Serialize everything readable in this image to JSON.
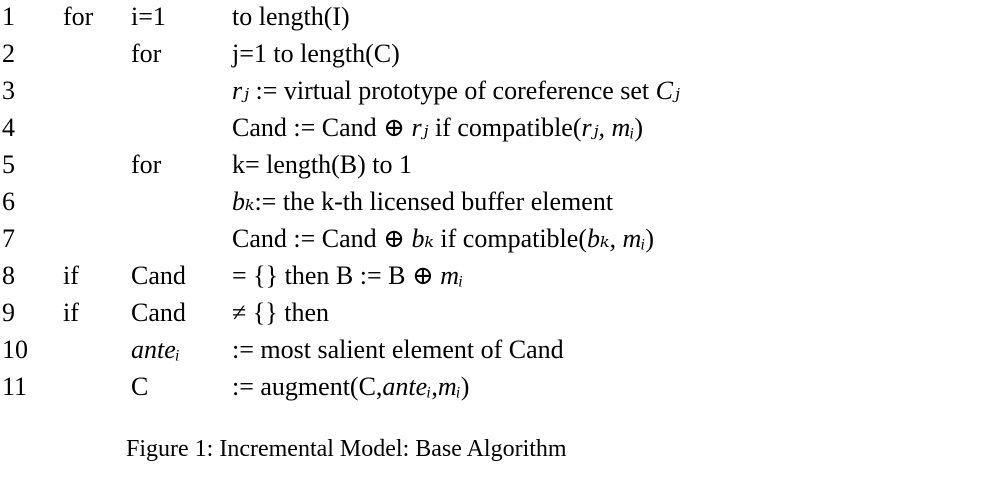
{
  "lines": [
    {
      "num": "1",
      "kw": "for",
      "var": "i=1",
      "body_pre": "to length(I)",
      "body_math1": "",
      "body_mid": "",
      "body_math2": "",
      "body_post": ""
    },
    {
      "num": "2",
      "kw": "",
      "var": "for",
      "body_pre": "j=1 to length(C)",
      "body_math1": "",
      "body_mid": "",
      "body_math2": "",
      "body_post": ""
    },
    {
      "num": "3",
      "kw": "",
      "var": "",
      "body_pre": "",
      "body_math1": "rⱼ",
      "body_mid": " := virtual prototype of coreference set ",
      "body_math2": "Cⱼ",
      "body_post": ""
    },
    {
      "num": "4",
      "kw": "",
      "var": "",
      "body_pre": "Cand := Cand ⊕ ",
      "body_math1": "rⱼ",
      "body_mid": " if compatible(",
      "body_math2": "rⱼ, mᵢ",
      "body_post": ")"
    },
    {
      "num": "5",
      "kw": "",
      "var": "for",
      "body_pre": "k= length(B) to 1",
      "body_math1": "",
      "body_mid": "",
      "body_math2": "",
      "body_post": ""
    },
    {
      "num": "6",
      "kw": "",
      "var": "",
      "body_pre": "",
      "body_math1": "bₖ",
      "body_mid": ":= the k-th licensed buffer element",
      "body_math2": "",
      "body_post": ""
    },
    {
      "num": "7",
      "kw": "",
      "var": "",
      "body_pre": "Cand := Cand ⊕ ",
      "body_math1": "bₖ",
      "body_mid": " if compatible(",
      "body_math2": "bₖ, mᵢ",
      "body_post": ")"
    },
    {
      "num": "8",
      "kw": "if",
      "var": "Cand",
      "body_pre": "= {} then B := B ⊕ ",
      "body_math1": "mᵢ",
      "body_mid": "",
      "body_math2": "",
      "body_post": ""
    },
    {
      "num": "9",
      "kw": "if",
      "var": "Cand",
      "body_pre": "≠ {} then",
      "body_math1": "",
      "body_mid": "",
      "body_math2": "",
      "body_post": ""
    },
    {
      "num": "10",
      "kw": "",
      "var": "anteᵢ",
      "body_pre": ":= most salient element of Cand",
      "body_math1": "",
      "body_mid": "",
      "body_math2": "",
      "body_post": ""
    },
    {
      "num": "11",
      "kw": "",
      "var": "C",
      "body_pre": ":= augment(C,",
      "body_math1": "anteᵢ",
      "body_mid": ",",
      "body_math2": "mᵢ",
      "body_post": ")"
    }
  ],
  "caption": "Figure 1: Incremental Model: Base Algorithm"
}
